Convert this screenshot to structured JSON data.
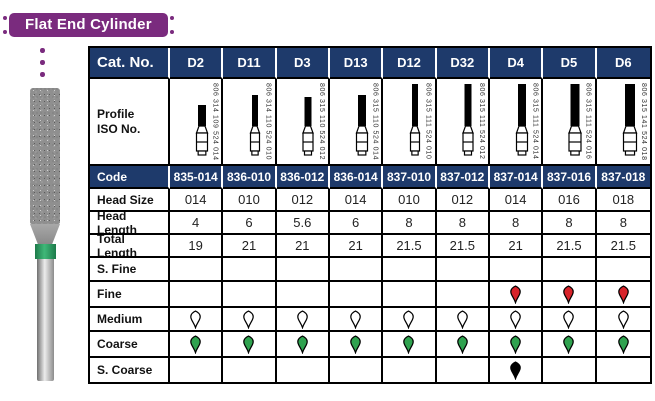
{
  "page": {
    "title": "Flat End Cylinder"
  },
  "colors": {
    "badge_bg": "#7a2b7e",
    "header_bg": "#1e3a6b",
    "grit_fine": "#d8232a",
    "grit_medium": "#ffffff",
    "grit_coarse": "#2fa24f",
    "grit_s_coarse": "#000000",
    "bur_band": "#2e9e62"
  },
  "icons": {
    "bur_photo": "diamond-bur-photo",
    "drop": "grit-drop-icon"
  },
  "table": {
    "corner_label": "Cat. No.",
    "profile_label": "Profile ISO No.",
    "rows": [
      {
        "key": "code",
        "label": "Code",
        "style": "navy"
      },
      {
        "key": "head_size",
        "label": "Head Size",
        "style": "value"
      },
      {
        "key": "head_length",
        "label": "Head Length",
        "style": "value"
      },
      {
        "key": "total_length",
        "label": "Total Length",
        "style": "value"
      },
      {
        "key": "s_fine",
        "label": "S. Fine",
        "style": "grit"
      },
      {
        "key": "fine",
        "label": "Fine",
        "style": "grit"
      },
      {
        "key": "medium",
        "label": "Medium",
        "style": "grit"
      },
      {
        "key": "coarse",
        "label": "Coarse",
        "style": "grit"
      },
      {
        "key": "s_coarse",
        "label": "S. Coarse",
        "style": "grit"
      }
    ],
    "columns": [
      {
        "cat_no": "D2",
        "iso_no": "806 314 109 524 014",
        "code": "835-014",
        "head_size": "014",
        "head_length": "4",
        "total_length": "19",
        "s_fine": "",
        "fine": "",
        "medium": "white",
        "coarse": "green",
        "s_coarse": ""
      },
      {
        "cat_no": "D11",
        "iso_no": "806 314 110 524 010",
        "code": "836-010",
        "head_size": "010",
        "head_length": "6",
        "total_length": "21",
        "s_fine": "",
        "fine": "",
        "medium": "white",
        "coarse": "green",
        "s_coarse": ""
      },
      {
        "cat_no": "D3",
        "iso_no": "806 315 110 524 012",
        "code": "836-012",
        "head_size": "012",
        "head_length": "5.6",
        "total_length": "21",
        "s_fine": "",
        "fine": "",
        "medium": "white",
        "coarse": "green",
        "s_coarse": ""
      },
      {
        "cat_no": "D13",
        "iso_no": "806 315 110 524 014",
        "code": "836-014",
        "head_size": "014",
        "head_length": "6",
        "total_length": "21",
        "s_fine": "",
        "fine": "",
        "medium": "white",
        "coarse": "green",
        "s_coarse": ""
      },
      {
        "cat_no": "D12",
        "iso_no": "806 315 111 524 010",
        "code": "837-010",
        "head_size": "010",
        "head_length": "8",
        "total_length": "21.5",
        "s_fine": "",
        "fine": "",
        "medium": "white",
        "coarse": "green",
        "s_coarse": ""
      },
      {
        "cat_no": "D32",
        "iso_no": "806 315 111 524 012",
        "code": "837-012",
        "head_size": "012",
        "head_length": "8",
        "total_length": "21.5",
        "s_fine": "",
        "fine": "",
        "medium": "white",
        "coarse": "green",
        "s_coarse": ""
      },
      {
        "cat_no": "D4",
        "iso_no": "806 315 111 524 014",
        "code": "837-014",
        "head_size": "014",
        "head_length": "8",
        "total_length": "21",
        "s_fine": "",
        "fine": "red",
        "medium": "white",
        "coarse": "green",
        "s_coarse": "black"
      },
      {
        "cat_no": "D5",
        "iso_no": "806 315 111 524 016",
        "code": "837-016",
        "head_size": "016",
        "head_length": "8",
        "total_length": "21.5",
        "s_fine": "",
        "fine": "red",
        "medium": "white",
        "coarse": "green",
        "s_coarse": ""
      },
      {
        "cat_no": "D6",
        "iso_no": "806 315 141 524 018",
        "code": "837-018",
        "head_size": "018",
        "head_length": "8",
        "total_length": "21.5",
        "s_fine": "",
        "fine": "red",
        "medium": "white",
        "coarse": "green",
        "s_coarse": ""
      }
    ]
  }
}
